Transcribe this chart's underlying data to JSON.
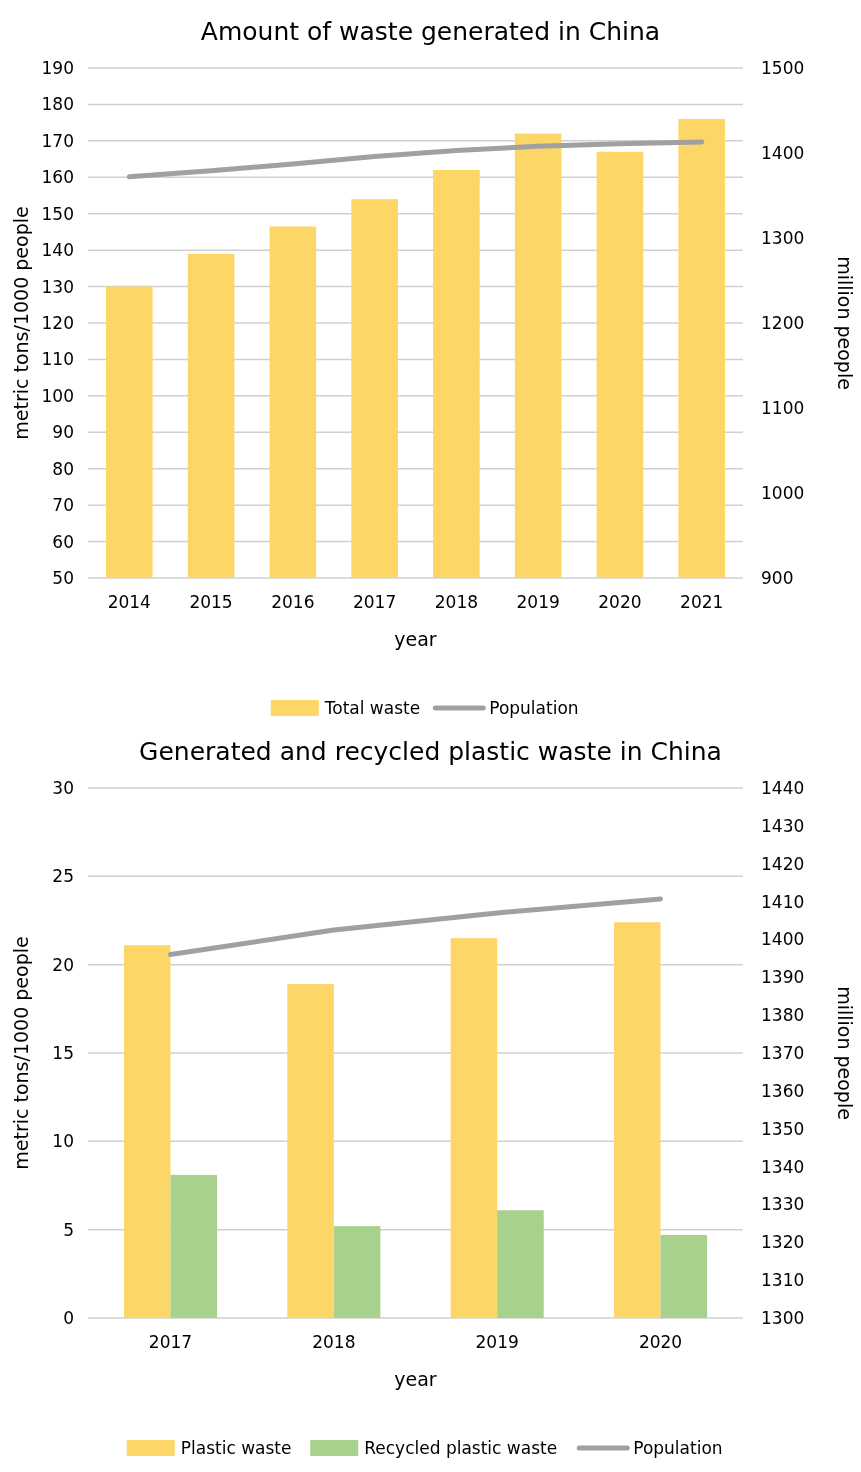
{
  "chart_data": [
    {
      "type": "bar",
      "title": "Amount of waste generated in China",
      "xlabel": "year",
      "ylabel": "metric tons/1000 people",
      "y2label": "million people",
      "categories": [
        "2014",
        "2015",
        "2016",
        "2017",
        "2018",
        "2019",
        "2020",
        "2021"
      ],
      "series": [
        {
          "name": "Total waste",
          "color": "#fdd668",
          "values": [
            130,
            139,
            146.5,
            154,
            162,
            172,
            167,
            176
          ]
        },
        {
          "name": "Population",
          "type": "line",
          "axis": "y2",
          "color": "#a0a0a0",
          "values": [
            1372,
            1379,
            1387,
            1396,
            1403,
            1408,
            1411,
            1413
          ]
        }
      ],
      "ylim": [
        50,
        190
      ],
      "yticks": [
        50,
        60,
        70,
        80,
        90,
        100,
        110,
        120,
        130,
        140,
        150,
        160,
        170,
        180,
        190
      ],
      "y2lim": [
        900,
        1500
      ],
      "y2ticks": [
        900,
        1000,
        1100,
        1200,
        1300,
        1400,
        1500
      ],
      "grid": "y",
      "legend": "bottom"
    },
    {
      "type": "bar",
      "title": "Generated and recycled plastic waste in China",
      "xlabel": "year",
      "ylabel": "metric tons/1000 people",
      "y2label": "million people",
      "categories": [
        "2017",
        "2018",
        "2019",
        "2020"
      ],
      "series": [
        {
          "name": "Plastic waste",
          "color": "#fdd668",
          "values": [
            21.1,
            18.9,
            21.5,
            22.4
          ]
        },
        {
          "name": "Recycled plastic waste",
          "color": "#a9d18e",
          "values": [
            8.1,
            5.2,
            6.1,
            4.7
          ]
        },
        {
          "name": "Population",
          "type": "line",
          "axis": "y2",
          "color": "#a0a0a0",
          "values": [
            1396,
            1402.5,
            1407,
            1410.7
          ]
        }
      ],
      "ylim": [
        0,
        30
      ],
      "yticks": [
        0,
        5,
        10,
        15,
        20,
        25,
        30
      ],
      "y2lim": [
        1300,
        1440
      ],
      "y2ticks": [
        1300,
        1310,
        1320,
        1330,
        1340,
        1350,
        1360,
        1370,
        1380,
        1390,
        1400,
        1410,
        1420,
        1430,
        1440
      ],
      "grid": "y",
      "legend": "bottom"
    }
  ]
}
